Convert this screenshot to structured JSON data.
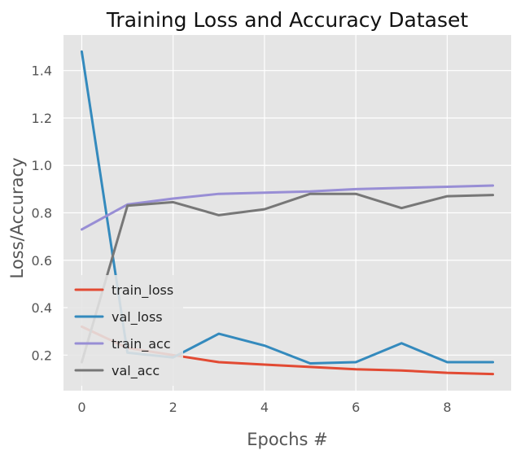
{
  "chart_data": {
    "type": "line",
    "title": "Training Loss and Accuracy Dataset",
    "xlabel": "Epochs #",
    "ylabel": "Loss/Accuracy",
    "xlim": [
      -0.4,
      9.4
    ],
    "ylim": [
      0.05,
      1.55
    ],
    "x_ticks": [
      0,
      2,
      4,
      6,
      8
    ],
    "y_ticks": [
      0.2,
      0.4,
      0.6,
      0.8,
      1.0,
      1.2,
      1.4
    ],
    "x_tick_labels": [
      "0",
      "2",
      "4",
      "6",
      "8"
    ],
    "y_tick_labels": [
      "0.2",
      "0.4",
      "0.6",
      "0.8",
      "1.0",
      "1.2",
      "1.4"
    ],
    "grid": true,
    "legend_position": "lower-left",
    "x": [
      0,
      1,
      2,
      3,
      4,
      5,
      6,
      7,
      8,
      9
    ],
    "series": [
      {
        "name": "train_loss",
        "color": "#E24A33",
        "values": [
          0.32,
          0.23,
          0.2,
          0.17,
          0.16,
          0.15,
          0.14,
          0.135,
          0.125,
          0.12
        ]
      },
      {
        "name": "val_loss",
        "color": "#348ABD",
        "values": [
          1.48,
          0.21,
          0.19,
          0.29,
          0.24,
          0.165,
          0.17,
          0.25,
          0.17,
          0.17
        ]
      },
      {
        "name": "train_acc",
        "color": "#988ED5",
        "values": [
          0.73,
          0.835,
          0.86,
          0.88,
          0.885,
          0.89,
          0.9,
          0.905,
          0.91,
          0.915
        ]
      },
      {
        "name": "val_acc",
        "color": "#777777",
        "values": [
          0.17,
          0.83,
          0.845,
          0.79,
          0.815,
          0.88,
          0.88,
          0.82,
          0.87,
          0.875
        ]
      }
    ]
  },
  "style": {
    "plot_background": "#E5E5E5",
    "grid_color": "#FFFFFF",
    "legend_background": "#E5E5E5"
  }
}
